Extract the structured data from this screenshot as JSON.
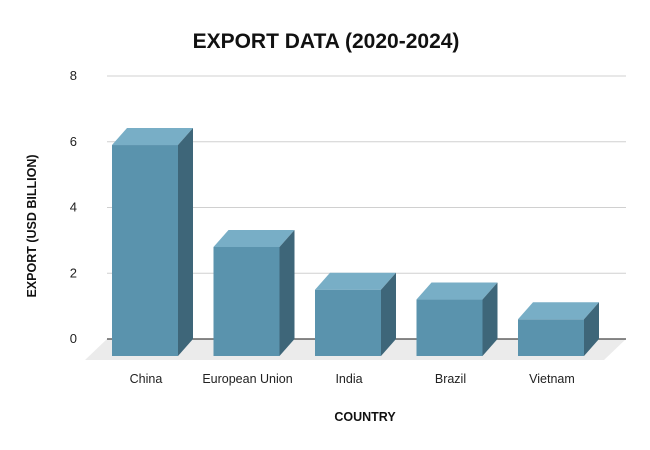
{
  "chart_data": {
    "type": "bar",
    "title": "EXPORT DATA (2020-2024)",
    "xlabel": "COUNTRY",
    "ylabel": "EXPORT (USD BILLION)",
    "categories": [
      "China",
      "European Union",
      "India",
      "Brazil",
      "Vietnam"
    ],
    "values": [
      5.9,
      2.8,
      1.5,
      1.2,
      0.6
    ],
    "ylim": [
      0,
      8
    ],
    "yticks": [
      "0",
      "2",
      "4",
      "6",
      "8"
    ],
    "grid": true,
    "style": "3d",
    "colors": {
      "bar_front": "#5a93ad",
      "bar_top": "#78aec6",
      "bar_side": "#3e6679",
      "floor": "#ebebeb",
      "gridline": "#d0d0d0"
    }
  }
}
